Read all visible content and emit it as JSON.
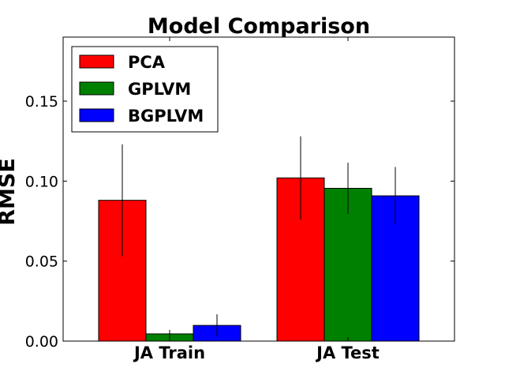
{
  "chart_data": {
    "type": "bar",
    "title": "Model Comparison",
    "xlabel": "",
    "ylabel": "RMSE",
    "categories": [
      "JA Train",
      "JA Test"
    ],
    "series": [
      {
        "name": "PCA",
        "color": "#ff0000",
        "values": [
          0.088,
          0.102
        ],
        "errors": [
          0.035,
          0.026
        ]
      },
      {
        "name": "GPLVM",
        "color": "#008000",
        "values": [
          0.0045,
          0.0955
        ],
        "errors": [
          0.0025,
          0.016
        ]
      },
      {
        "name": "BGPLVM",
        "color": "#0000ff",
        "values": [
          0.0098,
          0.0908
        ],
        "errors": [
          0.007,
          0.018
        ]
      }
    ],
    "ylim": [
      0,
      0.19
    ],
    "yticks": [
      0.0,
      0.05,
      0.1,
      0.15
    ],
    "ytick_labels": [
      "0.00",
      "0.05",
      "0.10",
      "0.15"
    ],
    "grid": false,
    "legend_position": "top-left"
  }
}
